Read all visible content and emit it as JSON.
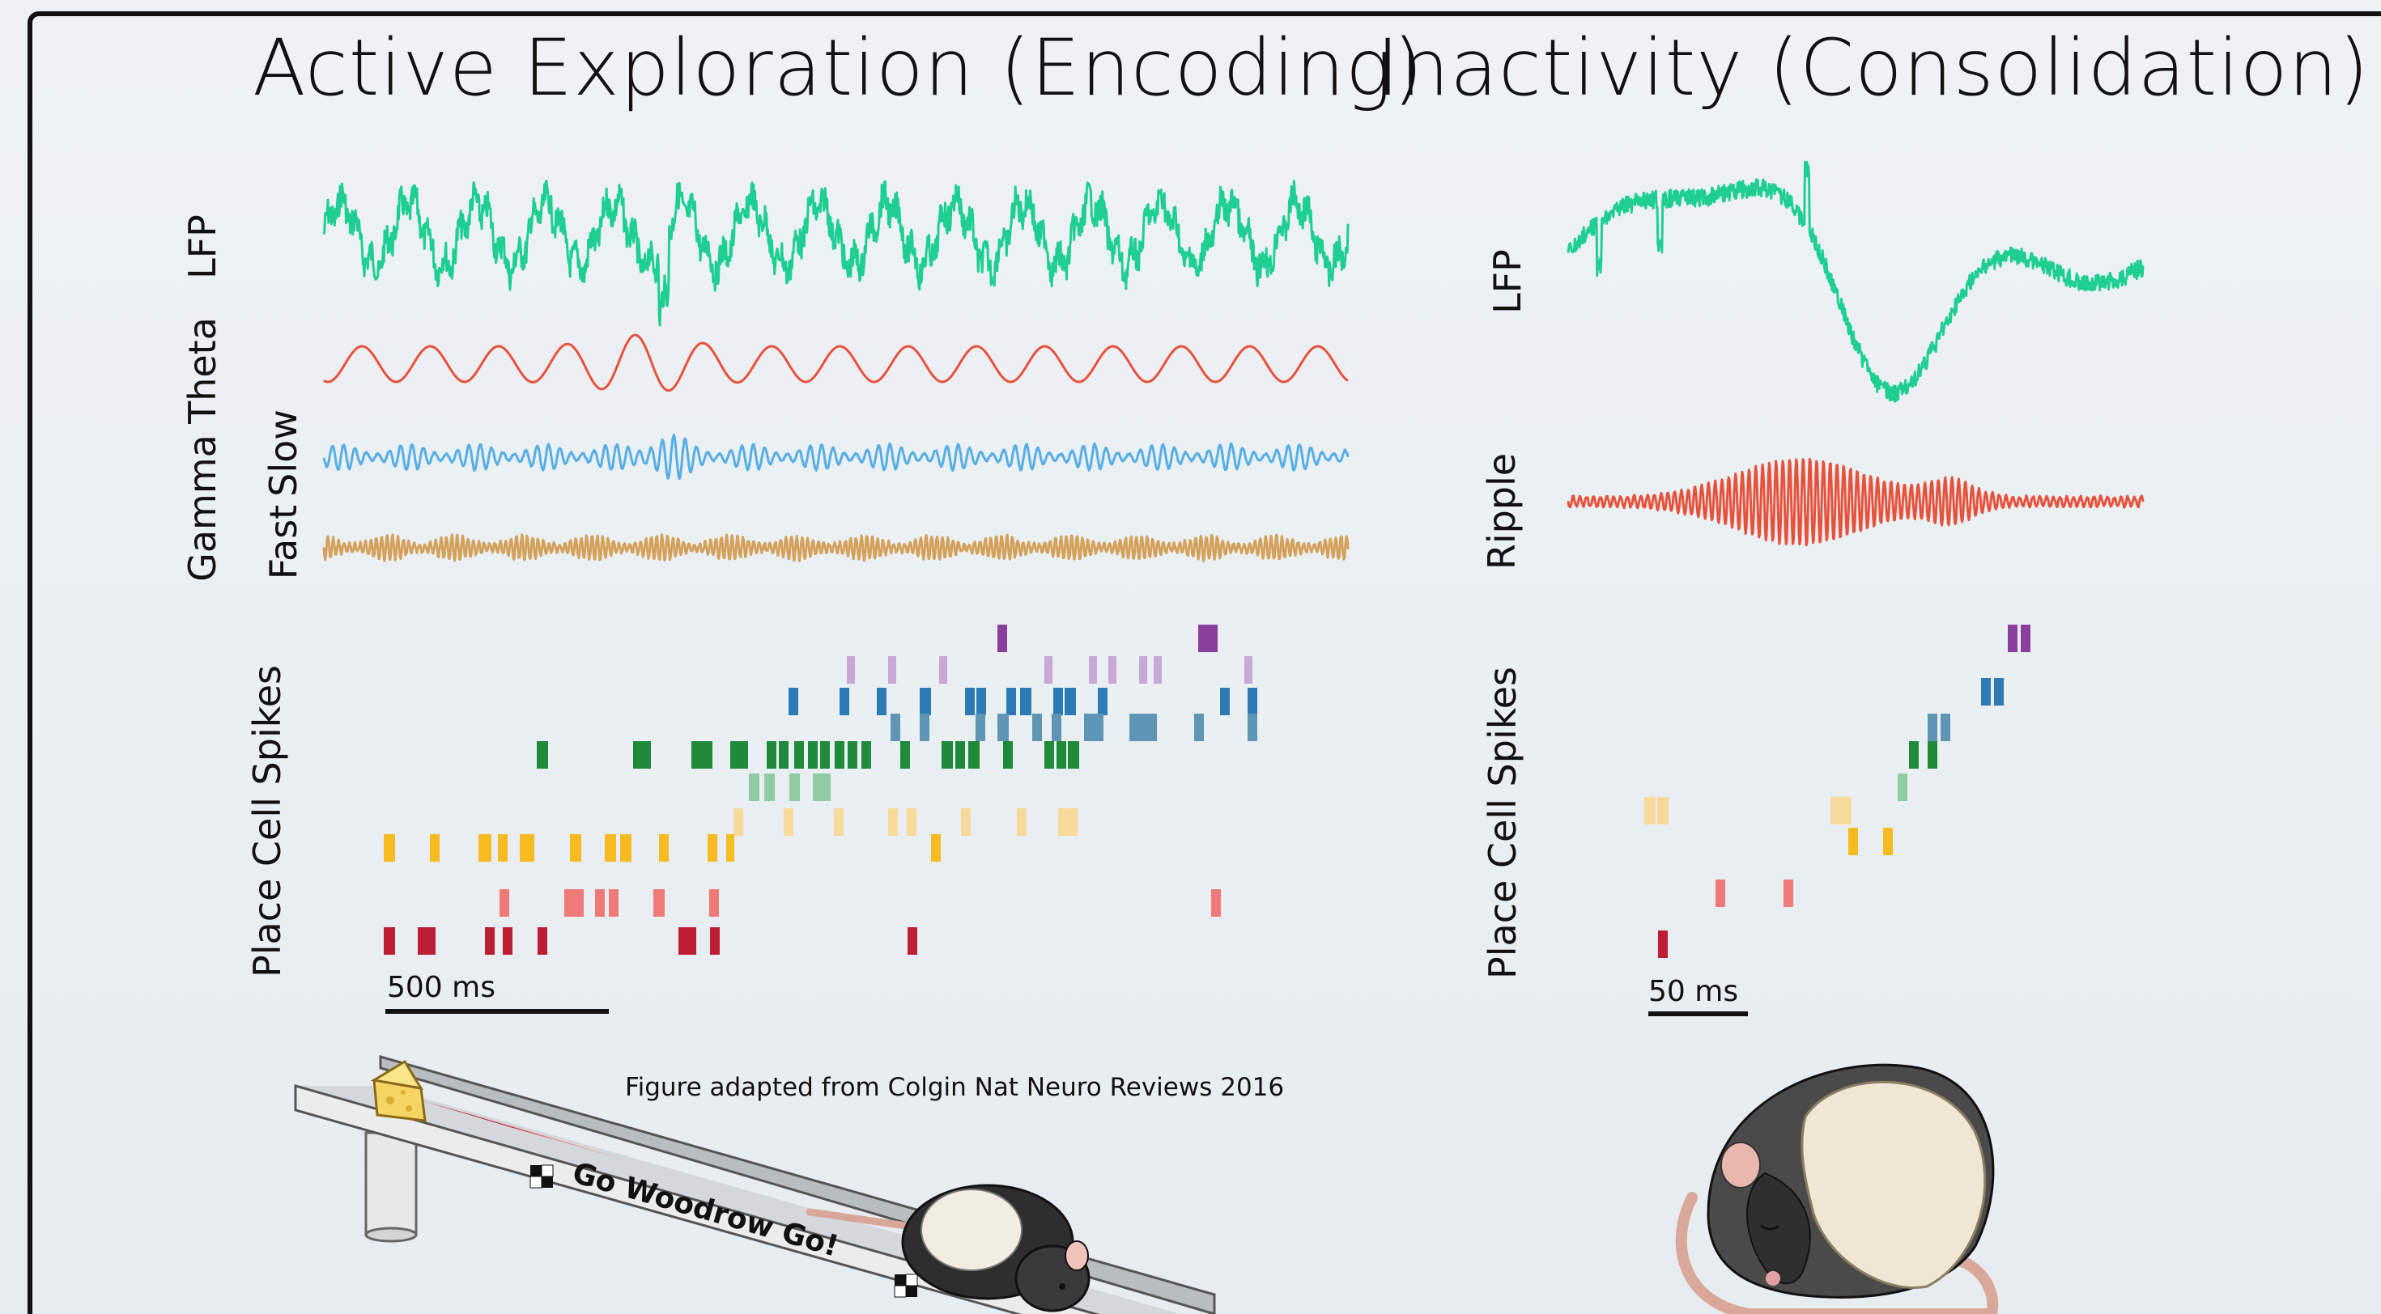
{
  "titles": {
    "left": "Active Exploration (Encoding)",
    "right": "Inactivity (Consolidation)"
  },
  "left_panel": {
    "labels": {
      "lfp": "LFP",
      "theta": "Theta",
      "gamma": "Gamma",
      "slow": "Slow",
      "fast": "Fast",
      "spikes": "Place Cell Spikes"
    },
    "scale_bar": "500 ms"
  },
  "right_panel": {
    "labels": {
      "lfp": "LFP",
      "ripple": "Ripple",
      "spikes": "Place Cell Spikes"
    },
    "scale_bar": "50 ms"
  },
  "credit": "Figure adapted from Colgin Nat Neuro Reviews 2016",
  "track": {
    "sign": "Go Woodrow Go!"
  },
  "colors": {
    "lfp": "#1fcf92",
    "theta": "#e8513b",
    "slow_gamma": "#56aee6",
    "fast_gamma": "#d4a15a",
    "cell_1": "#8a3e9e",
    "cell_2": "#c7a8d6",
    "cell_3": "#2d7bb5",
    "cell_4": "#5f95b4",
    "cell_5": "#1e8a3a",
    "cell_6": "#8fcaa2",
    "cell_7": "#f7d99a",
    "cell_8": "#f7bb22",
    "cell_9": "#f07a78",
    "cell_10": "#be1e34"
  }
}
